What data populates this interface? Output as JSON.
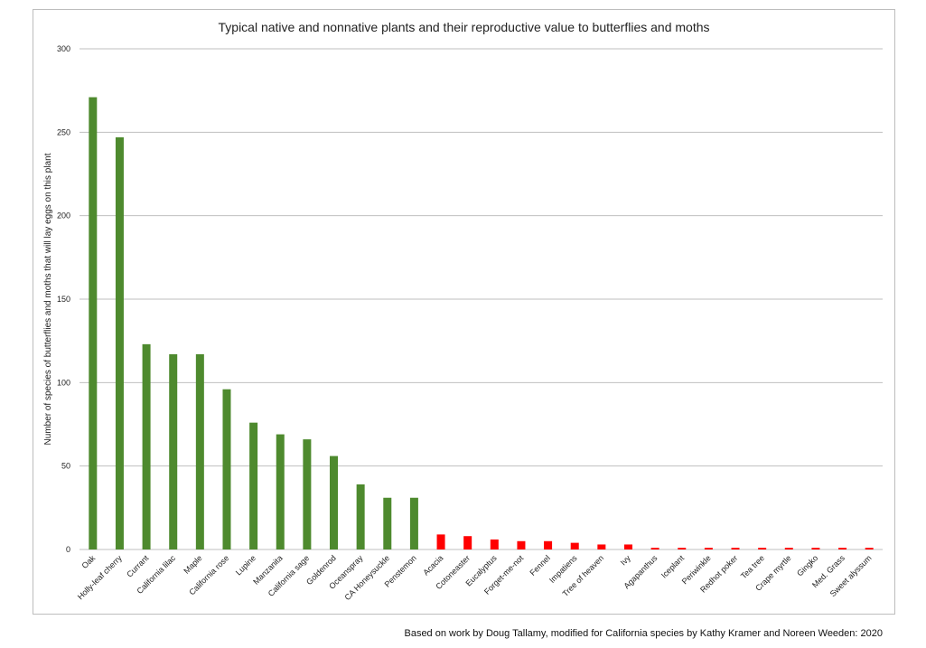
{
  "chart_data": {
    "type": "bar",
    "title": "Typical native and nonnative plants and their reproductive value to butterflies and moths",
    "xlabel": "",
    "ylabel": "Number of species of butterflies and moths that will lay eggs on this plant",
    "ylim": [
      0,
      300
    ],
    "yticks": [
      0,
      50,
      100,
      150,
      200,
      250,
      300
    ],
    "grid": true,
    "colors": {
      "native": "#4e8a2e",
      "nonnative": "#ff0000",
      "grid": "#bfbfbf"
    },
    "categories": [
      "Oak",
      "Holly-leaf cherry",
      "Currant",
      "California lilac",
      "Maple",
      "California rose",
      "Lupine",
      "Manzanita",
      "California sage",
      "Goldenrod",
      "Oceanspray",
      "CA Honeysuckle",
      "Penstemon",
      "Acacia",
      "Cotoneaster",
      "Eucalyptus",
      "Forget-me-not",
      "Fennel",
      "Impatiens",
      "Tree of heaven",
      "Ivy",
      "Agapanthus",
      "Iceplant",
      "Periwinkle",
      "Redhot poker",
      "Tea tree",
      "Crape myrtle",
      "Gingko",
      "Med. Grass",
      "Sweet alyssum"
    ],
    "values": [
      271,
      247,
      123,
      117,
      117,
      96,
      76,
      69,
      66,
      56,
      39,
      31,
      31,
      9,
      8,
      6,
      5,
      5,
      4,
      3,
      3,
      1,
      1,
      1,
      1,
      1,
      1,
      1,
      1,
      1
    ],
    "bar_groups": [
      "native",
      "native",
      "native",
      "native",
      "native",
      "native",
      "native",
      "native",
      "native",
      "native",
      "native",
      "native",
      "native",
      "nonnative",
      "nonnative",
      "nonnative",
      "nonnative",
      "nonnative",
      "nonnative",
      "nonnative",
      "nonnative",
      "nonnative",
      "nonnative",
      "nonnative",
      "nonnative",
      "nonnative",
      "nonnative",
      "nonnative",
      "nonnative",
      "nonnative"
    ]
  },
  "caption": "Based on work by Doug Tallamy, modified for California species by Kathy Kramer and Noreen  Weeden:  2020"
}
